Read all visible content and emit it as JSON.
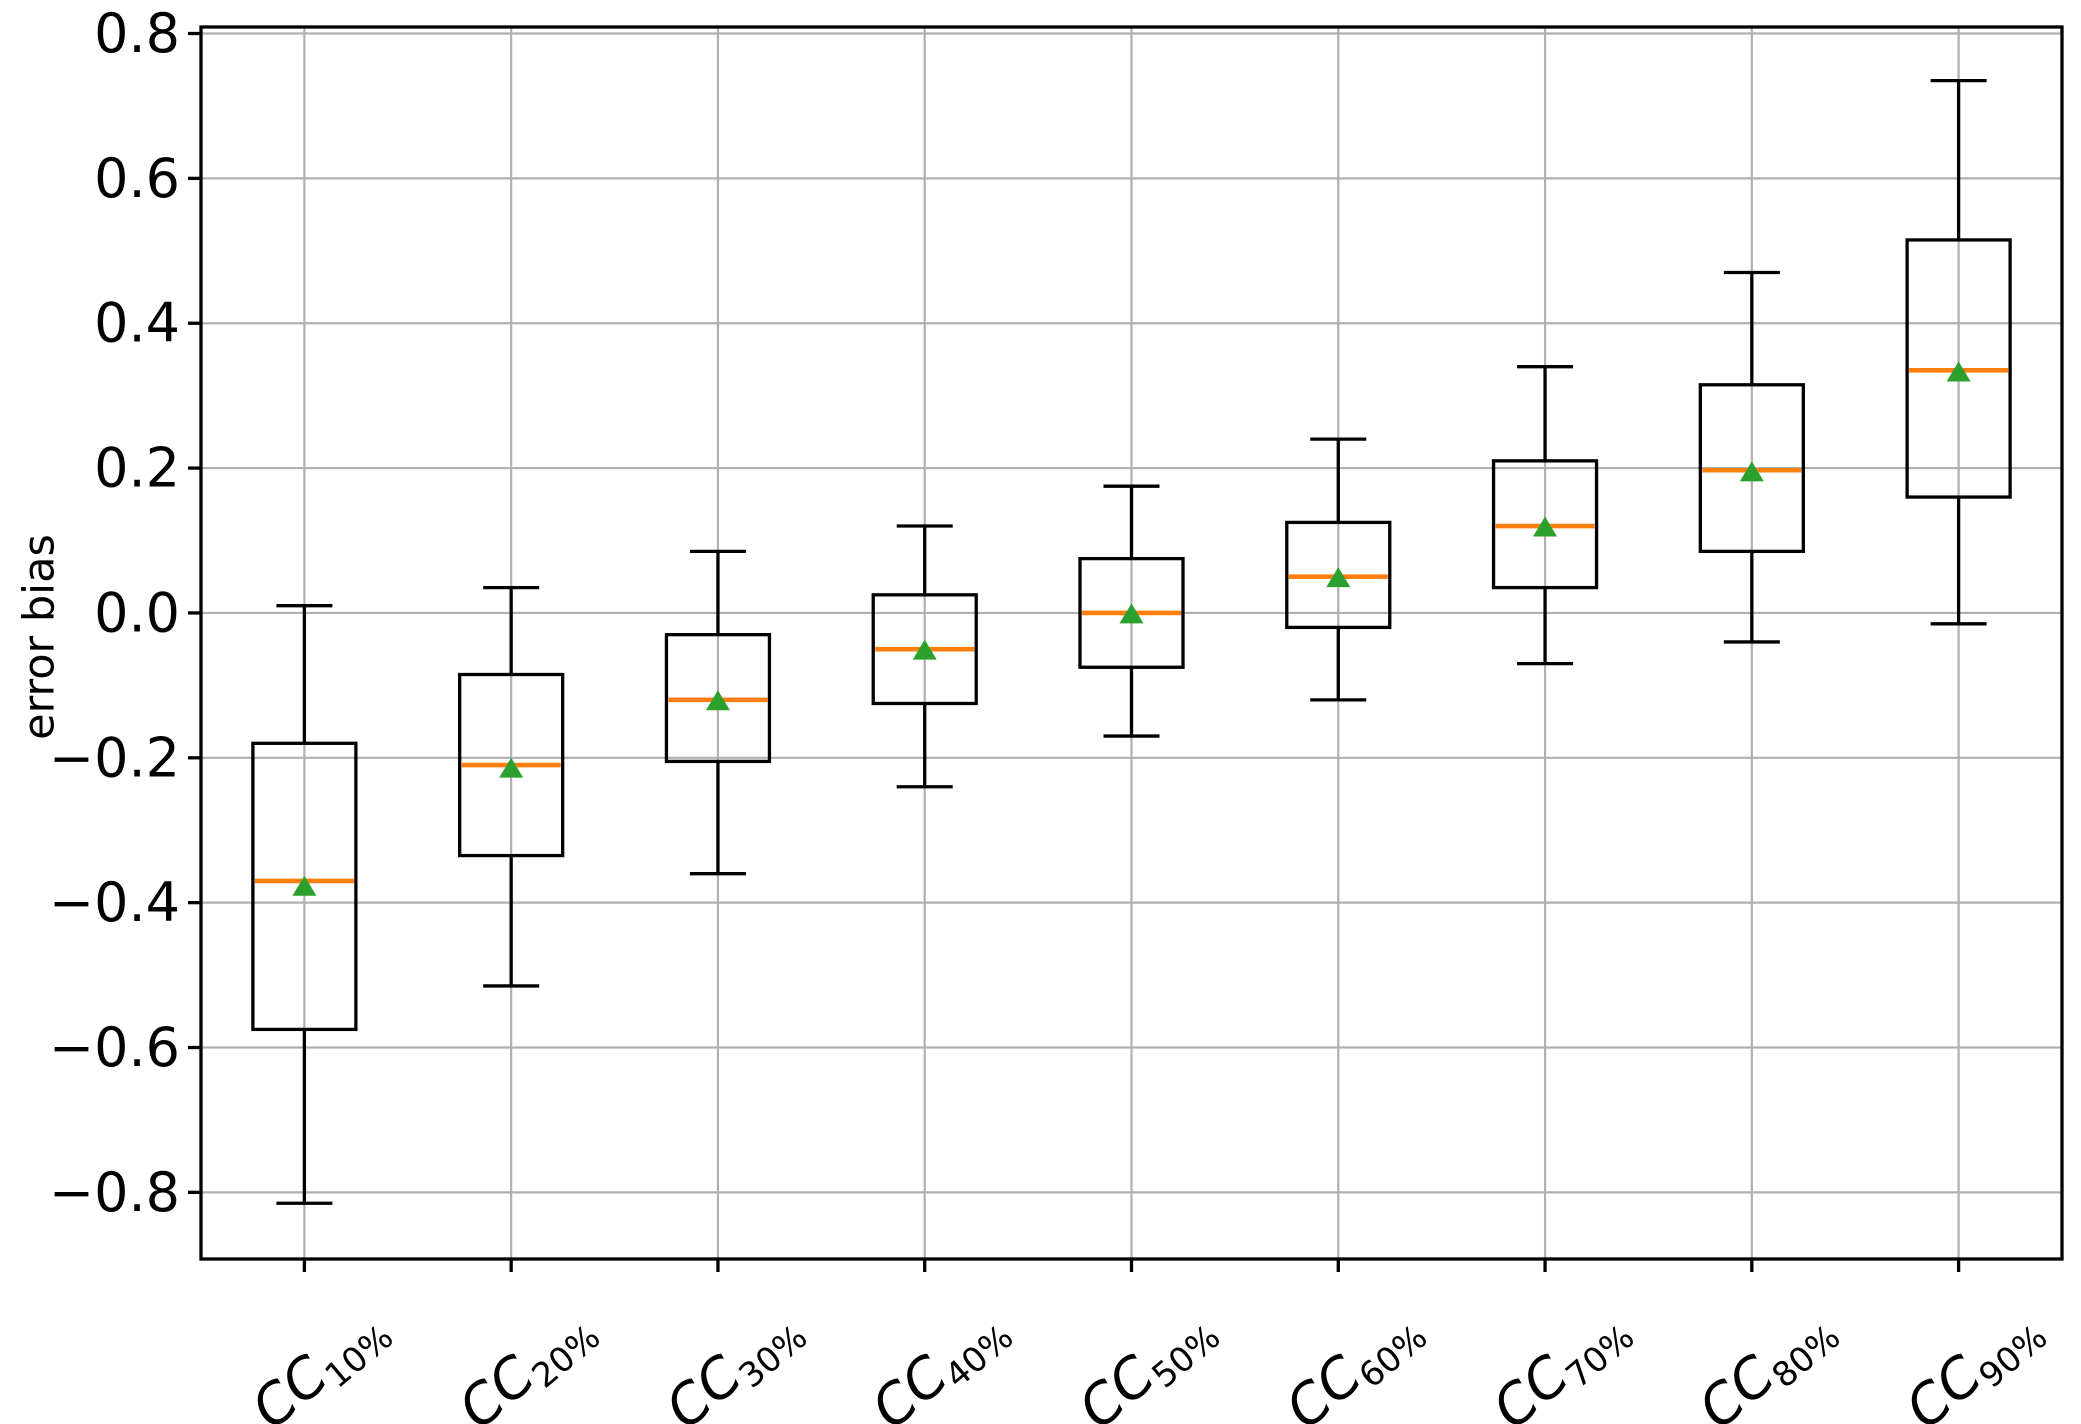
{
  "chart_data": {
    "type": "boxplot",
    "ylabel": "error bias",
    "xlabel": "",
    "ylim": [
      -0.892,
      0.809
    ],
    "grid": true,
    "xtick_rotation_deg": 40,
    "mean_marker_shape": "triangle-up",
    "colors": {
      "box": "#000000",
      "whisker": "#000000",
      "median": "#ff7f0e",
      "mean_marker": "#2ca02c",
      "grid": "#b0b0b0",
      "spine": "#000000",
      "text": "#000000",
      "background": "#ffffff"
    },
    "yticks": [
      {
        "v": 0.8,
        "label": "0.8"
      },
      {
        "v": 0.6,
        "label": "0.6"
      },
      {
        "v": 0.4,
        "label": "0.4"
      },
      {
        "v": 0.2,
        "label": "0.2"
      },
      {
        "v": 0.0,
        "label": "0.0"
      },
      {
        "v": -0.2,
        "label": "−0.2"
      },
      {
        "v": -0.4,
        "label": "−0.4"
      },
      {
        "v": -0.6,
        "label": "−0.6"
      },
      {
        "v": -0.8,
        "label": "−0.8"
      }
    ],
    "categories": [
      {
        "id": "cc10",
        "base": "CC",
        "sub": "10%",
        "label": "CC10%"
      },
      {
        "id": "cc20",
        "base": "CC",
        "sub": "20%",
        "label": "CC20%"
      },
      {
        "id": "cc30",
        "base": "CC",
        "sub": "30%",
        "label": "CC30%"
      },
      {
        "id": "cc40",
        "base": "CC",
        "sub": "40%",
        "label": "CC40%"
      },
      {
        "id": "cc50",
        "base": "CC",
        "sub": "50%",
        "label": "CC50%"
      },
      {
        "id": "cc60",
        "base": "CC",
        "sub": "60%",
        "label": "CC60%"
      },
      {
        "id": "cc70",
        "base": "CC",
        "sub": "70%",
        "label": "CC70%"
      },
      {
        "id": "cc80",
        "base": "CC",
        "sub": "80%",
        "label": "CC80%"
      },
      {
        "id": "cc90",
        "base": "CC",
        "sub": "90%",
        "label": "CC90%"
      }
    ],
    "series": [
      {
        "category": "CC10%",
        "whisker_low": -0.815,
        "q1": -0.575,
        "median": -0.37,
        "q3": -0.18,
        "whisker_high": 0.01,
        "mean": -0.378
      },
      {
        "category": "CC20%",
        "whisker_low": -0.515,
        "q1": -0.335,
        "median": -0.21,
        "q3": -0.085,
        "whisker_high": 0.035,
        "mean": -0.215
      },
      {
        "category": "CC30%",
        "whisker_low": -0.36,
        "q1": -0.205,
        "median": -0.12,
        "q3": -0.03,
        "whisker_high": 0.085,
        "mean": -0.122
      },
      {
        "category": "CC40%",
        "whisker_low": -0.24,
        "q1": -0.125,
        "median": -0.05,
        "q3": 0.025,
        "whisker_high": 0.12,
        "mean": -0.052
      },
      {
        "category": "CC50%",
        "whisker_low": -0.17,
        "q1": -0.075,
        "median": 0.0,
        "q3": 0.075,
        "whisker_high": 0.175,
        "mean": -0.002
      },
      {
        "category": "CC60%",
        "whisker_low": -0.12,
        "q1": -0.02,
        "median": 0.05,
        "q3": 0.125,
        "whisker_high": 0.24,
        "mean": 0.048
      },
      {
        "category": "CC70%",
        "whisker_low": -0.07,
        "q1": 0.035,
        "median": 0.12,
        "q3": 0.21,
        "whisker_high": 0.34,
        "mean": 0.118
      },
      {
        "category": "CC80%",
        "whisker_low": -0.04,
        "q1": 0.085,
        "median": 0.197,
        "q3": 0.315,
        "whisker_high": 0.47,
        "mean": 0.194
      },
      {
        "category": "CC90%",
        "whisker_low": -0.015,
        "q1": 0.16,
        "median": 0.335,
        "q3": 0.515,
        "whisker_high": 0.735,
        "mean": 0.332
      }
    ]
  }
}
